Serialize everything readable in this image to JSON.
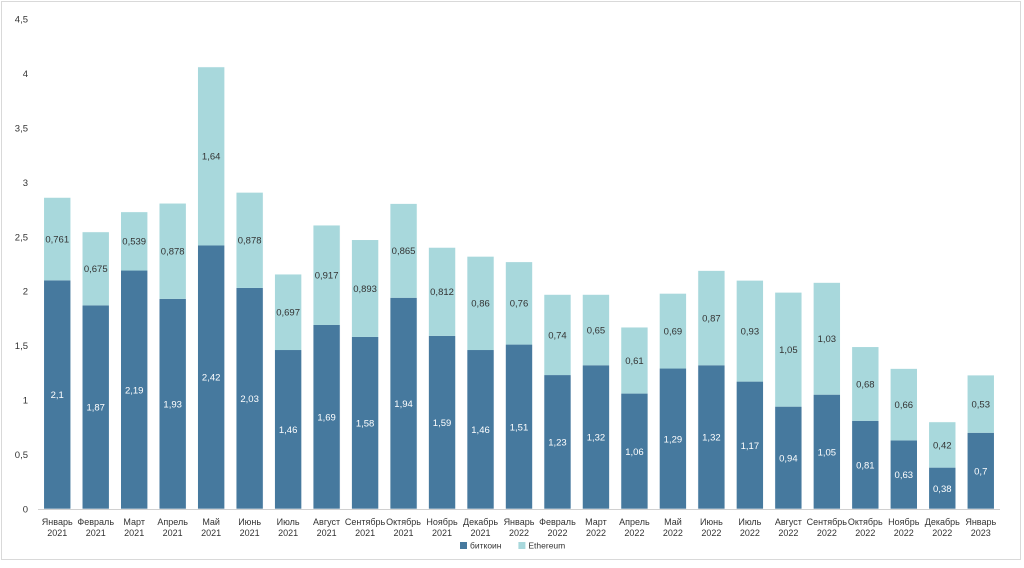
{
  "chart_data": {
    "type": "bar",
    "stacked": true,
    "categories": [
      [
        "Январь",
        "2021"
      ],
      [
        "Февраль",
        "2021"
      ],
      [
        "Март",
        "2021"
      ],
      [
        "Апрель",
        "2021"
      ],
      [
        "Май",
        "2021"
      ],
      [
        "Июнь",
        "2021"
      ],
      [
        "Июль",
        "2021"
      ],
      [
        "Август",
        "2021"
      ],
      [
        "Сентябрь",
        "2021"
      ],
      [
        "Октябрь",
        "2021"
      ],
      [
        "Ноябрь",
        "2021"
      ],
      [
        "Декабрь",
        "2021"
      ],
      [
        "Январь",
        "2022"
      ],
      [
        "Февраль",
        "2022"
      ],
      [
        "Март",
        "2022"
      ],
      [
        "Апрель",
        "2022"
      ],
      [
        "Май",
        "2022"
      ],
      [
        "Июнь",
        "2022"
      ],
      [
        "Июль",
        "2022"
      ],
      [
        "Август",
        "2022"
      ],
      [
        "Сентябрь",
        "2022"
      ],
      [
        "Октябрь",
        "2022"
      ],
      [
        "Ноябрь",
        "2022"
      ],
      [
        "Декабрь",
        "2022"
      ],
      [
        "Январь",
        "2023"
      ]
    ],
    "series": [
      {
        "name": "биткоин",
        "color": "#46799e",
        "label_color": "#ffffff",
        "values": [
          2.1,
          1.87,
          2.19,
          1.93,
          2.42,
          2.03,
          1.46,
          1.69,
          1.58,
          1.94,
          1.59,
          1.46,
          1.51,
          1.23,
          1.32,
          1.06,
          1.29,
          1.32,
          1.17,
          0.94,
          1.05,
          0.81,
          0.63,
          0.38,
          0.7
        ],
        "labels": [
          "2,1",
          "1,87",
          "2,19",
          "1,93",
          "2,42",
          "2,03",
          "1,46",
          "1,69",
          "1,58",
          "1,94",
          "1,59",
          "1,46",
          "1,51",
          "1,23",
          "1,32",
          "1,06",
          "1,29",
          "1,32",
          "1,17",
          "0,94",
          "1,05",
          "0,81",
          "0,63",
          "0,38",
          "0,7"
        ]
      },
      {
        "name": "Ethereum",
        "color": "#a8d8dc",
        "label_color": "#333333",
        "values": [
          0.761,
          0.675,
          0.539,
          0.878,
          1.64,
          0.878,
          0.697,
          0.917,
          0.893,
          0.865,
          0.812,
          0.86,
          0.76,
          0.74,
          0.65,
          0.61,
          0.69,
          0.87,
          0.93,
          1.05,
          1.03,
          0.68,
          0.66,
          0.42,
          0.53
        ],
        "labels": [
          "0,761",
          "0,675",
          "0,539",
          "0,878",
          "1,64",
          "0,878",
          "0,697",
          "0,917",
          "0,893",
          "0,865",
          "0,812",
          "0,86",
          "0,76",
          "0,74",
          "0,65",
          "0,61",
          "0,69",
          "0,87",
          "0,93",
          "1,05",
          "1,03",
          "0,68",
          "0,66",
          "0,42",
          "0,53"
        ]
      }
    ],
    "y_ticks": [
      "0",
      "0,5",
      "1",
      "1,5",
      "2",
      "2,5",
      "3",
      "3,5",
      "4",
      "4,5"
    ],
    "y_tick_values": [
      0,
      0.5,
      1,
      1.5,
      2,
      2.5,
      3,
      3.5,
      4,
      4.5
    ],
    "ylim": [
      0,
      4.5
    ],
    "grid": false,
    "legend_position": "bottom",
    "title": "",
    "xlabel": "",
    "ylabel": ""
  },
  "colors": {
    "background": "#ffffff",
    "axis": "#d0d0d0",
    "tick_text": "#333333"
  }
}
